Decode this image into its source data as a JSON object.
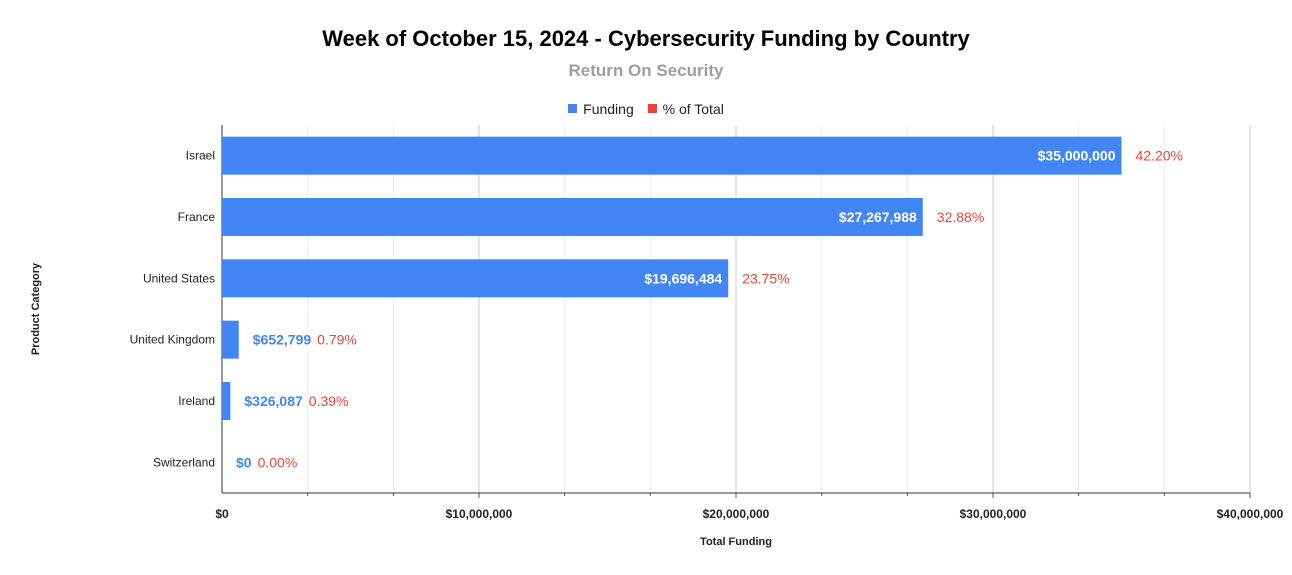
{
  "chart_data": {
    "type": "bar",
    "orientation": "horizontal",
    "title": "Week of October 15, 2024 - Cybersecurity Funding by Country",
    "subtitle": "Return On Security",
    "xlabel": "Total Funding",
    "ylabel": "Product Category",
    "xlim": [
      0,
      40000000
    ],
    "x_ticks": [
      {
        "value": 0,
        "label": "$0"
      },
      {
        "value": 10000000,
        "label": "$10,000,000"
      },
      {
        "value": 20000000,
        "label": "$20,000,000"
      },
      {
        "value": 30000000,
        "label": "$30,000,000"
      },
      {
        "value": 40000000,
        "label": "$40,000,000"
      }
    ],
    "legend": [
      {
        "name": "Funding",
        "color": "#4285f4"
      },
      {
        "name": "% of Total",
        "color": "#ea4335"
      }
    ],
    "legend_position": "top",
    "grid": true,
    "categories": [
      "Israel",
      "France",
      "United States",
      "United Kingdom",
      "Ireland",
      "Switzerland"
    ],
    "series": [
      {
        "name": "Funding",
        "color": "#4285f4",
        "values": [
          35000000,
          27267988,
          19696484,
          652799,
          326087,
          0
        ],
        "labels": [
          "$35,000,000",
          "$27,267,988",
          "$19,696,484",
          "$652,799",
          "$326,087",
          "$0"
        ]
      },
      {
        "name": "% of Total",
        "color": "#ea4335",
        "values": [
          42.2,
          32.88,
          23.75,
          0.79,
          0.39,
          0.0
        ],
        "labels": [
          "42.20%",
          "32.88%",
          "23.75%",
          "0.79%",
          "0.39%",
          "0.00%"
        ]
      }
    ]
  }
}
